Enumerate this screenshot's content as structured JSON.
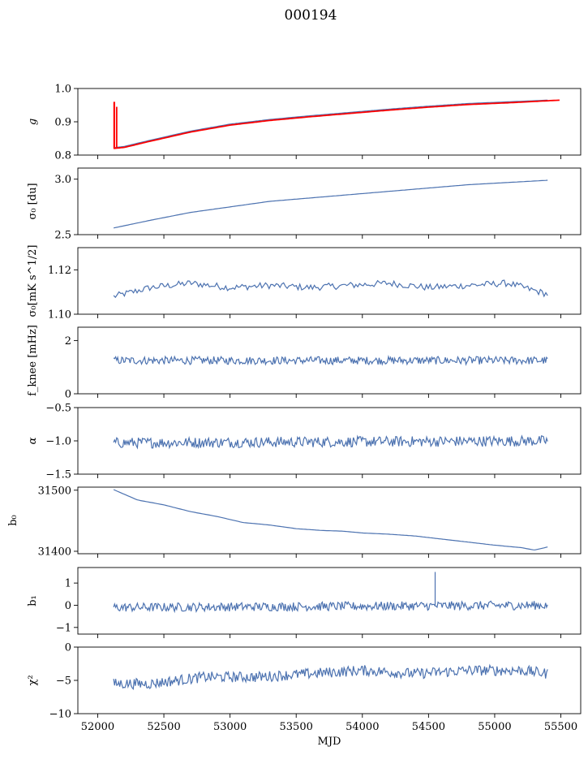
{
  "figure_title": "000194",
  "chart_data": [
    {
      "type": "line",
      "ylabel": "g",
      "xlabel": "",
      "xlim": [
        51850,
        55650
      ],
      "ylim": [
        0.8,
        1.0
      ],
      "yticks": [
        0.8,
        0.9,
        1.0
      ],
      "ytick_labels": [
        "0.8",
        "0.9",
        "1.0"
      ],
      "series": [
        {
          "color": "#4c72b0",
          "x": [
            52120,
            52200,
            52400,
            52700,
            53000,
            53300,
            53600,
            53900,
            54200,
            54500,
            54800,
            55100,
            55400
          ],
          "y": [
            0.822,
            0.826,
            0.845,
            0.872,
            0.893,
            0.907,
            0.918,
            0.928,
            0.938,
            0.947,
            0.955,
            0.96,
            0.965
          ]
        },
        {
          "color": "#ff0000",
          "x": [
            52120,
            52200,
            52400,
            52700,
            53000,
            53300,
            53600,
            53900,
            54200,
            54500,
            54800,
            55100,
            55490
          ],
          "y": [
            0.82,
            0.823,
            0.842,
            0.869,
            0.89,
            0.904,
            0.915,
            0.925,
            0.935,
            0.944,
            0.952,
            0.957,
            0.965
          ]
        }
      ],
      "spike": {
        "x": 52125,
        "y_low": 0.82,
        "y_high": 0.96
      }
    },
    {
      "type": "line",
      "ylabel": "σ₀ [du]",
      "xlim": [
        51850,
        55650
      ],
      "ylim": [
        2.5,
        3.1
      ],
      "yticks": [
        2.5,
        3.0
      ],
      "ytick_labels": [
        "2.5",
        "3.0"
      ],
      "series": [
        {
          "color": "#4c72b0",
          "x": [
            52120,
            52400,
            52700,
            53000,
            53300,
            53600,
            53900,
            54200,
            54500,
            54800,
            55100,
            55400
          ],
          "y": [
            2.56,
            2.63,
            2.7,
            2.75,
            2.8,
            2.83,
            2.86,
            2.89,
            2.92,
            2.95,
            2.97,
            2.99
          ]
        }
      ]
    },
    {
      "type": "line",
      "ylabel": "σ₀[mK s^1/2]",
      "xlim": [
        51850,
        55650
      ],
      "ylim": [
        1.1,
        1.13
      ],
      "yticks": [
        1.1,
        1.12
      ],
      "ytick_labels": [
        "1.10",
        "1.12"
      ],
      "series": [
        {
          "color": "#4c72b0",
          "x": [
            52120,
            52400,
            52700,
            53000,
            53300,
            53600,
            53900,
            54200,
            54500,
            54800,
            55100,
            55400
          ],
          "y": [
            1.108,
            1.112,
            1.114,
            1.112,
            1.113,
            1.112,
            1.113,
            1.114,
            1.112,
            1.113,
            1.114,
            1.109
          ]
        }
      ]
    },
    {
      "type": "line",
      "ylabel": "f_knee [mHz]",
      "xlim": [
        51850,
        55650
      ],
      "ylim": [
        0,
        2.5
      ],
      "yticks": [
        0,
        2
      ],
      "ytick_labels": [
        "0",
        "2"
      ],
      "series": [
        {
          "color": "#4c72b0",
          "x": [
            52120,
            55400
          ],
          "y": [
            1.25,
            1.25
          ],
          "noise": 0.15
        }
      ]
    },
    {
      "type": "line",
      "ylabel": "α",
      "xlim": [
        51850,
        55650
      ],
      "ylim": [
        -1.5,
        -0.5
      ],
      "yticks": [
        -1.5,
        -1.0,
        -0.5
      ],
      "ytick_labels": [
        "−1.5",
        "−1.0",
        "−0.5"
      ],
      "series": [
        {
          "color": "#4c72b0",
          "x": [
            52120,
            55400
          ],
          "y": [
            -1.03,
            -1.0
          ],
          "noise": 0.08
        }
      ]
    },
    {
      "type": "line",
      "ylabel": "b₀",
      "xlim": [
        51850,
        55650
      ],
      "ylim": [
        31396,
        31505
      ],
      "yticks": [
        31400,
        31500
      ],
      "ytick_labels": [
        "31400",
        "31500"
      ],
      "series": [
        {
          "color": "#4c72b0",
          "x": [
            52120,
            52300,
            52500,
            52700,
            52900,
            53100,
            53300,
            53500,
            53700,
            53850,
            54000,
            54200,
            54400,
            54600,
            54800,
            55000,
            55200,
            55300,
            55400
          ],
          "y": [
            31501,
            31484,
            31476,
            31465,
            31457,
            31447,
            31443,
            31437,
            31434,
            31433,
            31430,
            31428,
            31425,
            31420,
            31415,
            31410,
            31406,
            31402,
            31407
          ]
        }
      ]
    },
    {
      "type": "line",
      "ylabel": "b₁",
      "xlim": [
        51850,
        55650
      ],
      "ylim": [
        -1.3,
        1.7
      ],
      "yticks": [
        -1,
        0,
        1
      ],
      "ytick_labels": [
        "−1",
        "0",
        "1"
      ],
      "series": [
        {
          "color": "#4c72b0",
          "x": [
            52120,
            55400
          ],
          "y": [
            -0.1,
            0.0
          ],
          "noise": 0.2
        }
      ],
      "spike": {
        "x": 54550,
        "y_low": 0,
        "y_high": 1.5
      }
    },
    {
      "type": "line",
      "ylabel": "χ²",
      "xlim": [
        51850,
        55650
      ],
      "ylim": [
        -10,
        0
      ],
      "yticks": [
        -10,
        -5,
        0
      ],
      "ytick_labels": [
        "−10",
        "−5",
        "0"
      ],
      "xticks": [
        52000,
        52500,
        53000,
        53500,
        54000,
        54500,
        55000,
        55500
      ],
      "xtick_labels": [
        "52000",
        "52500",
        "53000",
        "53500",
        "54000",
        "54500",
        "55000",
        "55500"
      ],
      "xlabel": "MJD",
      "series": [
        {
          "color": "#4c72b0",
          "x": [
            52120,
            52400,
            52800,
            53200,
            53600,
            54000,
            54400,
            54800,
            55200,
            55400
          ],
          "y": [
            -5.5,
            -5.5,
            -4.5,
            -4.5,
            -4,
            -3.5,
            -4,
            -3.5,
            -3.5,
            -4
          ],
          "noise": 0.8
        }
      ]
    }
  ]
}
